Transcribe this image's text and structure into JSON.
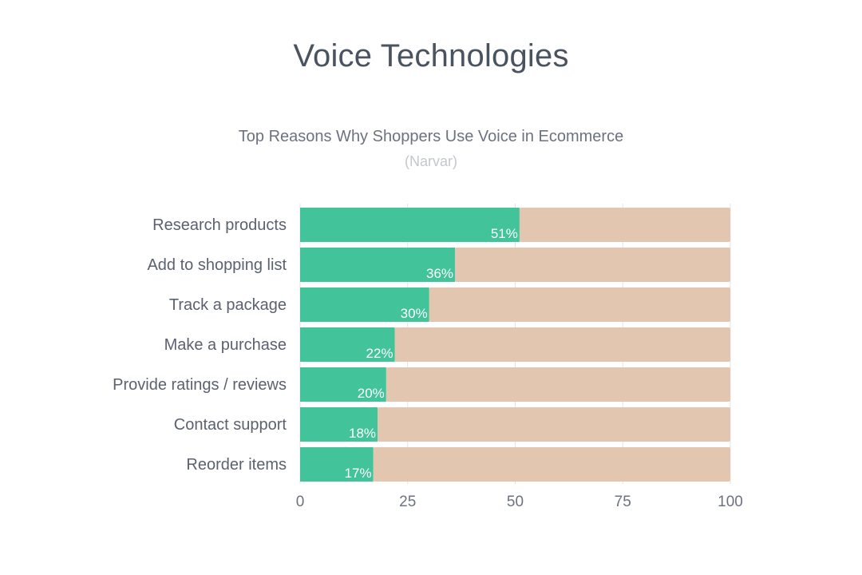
{
  "header": {
    "title": "Voice Technologies"
  },
  "chart_data": {
    "type": "bar",
    "orientation": "horizontal",
    "stacked_background": true,
    "title": "Top Reasons Why Shoppers Use Voice in Ecommerce",
    "subtitle": "(Narvar)",
    "categories": [
      "Research products",
      "Add to shopping list",
      "Track a package",
      "Make a purchase",
      "Provide ratings / reviews",
      "Contact support",
      "Reorder items"
    ],
    "values": [
      51,
      36,
      30,
      22,
      20,
      18,
      17
    ],
    "value_labels": [
      "51%",
      "36%",
      "30%",
      "22%",
      "20%",
      "18%",
      "17%"
    ],
    "xlim": [
      0,
      100
    ],
    "xticks": [
      0,
      25,
      50,
      75,
      100
    ],
    "xtick_labels": [
      "0",
      "25",
      "50",
      "75",
      "100"
    ],
    "xlabel": "",
    "ylabel": "",
    "grid": true,
    "colors": {
      "value_bar": "#42c39a",
      "remainder_bar": "#e3c6b0",
      "gridline": "#e3e3e3"
    }
  }
}
